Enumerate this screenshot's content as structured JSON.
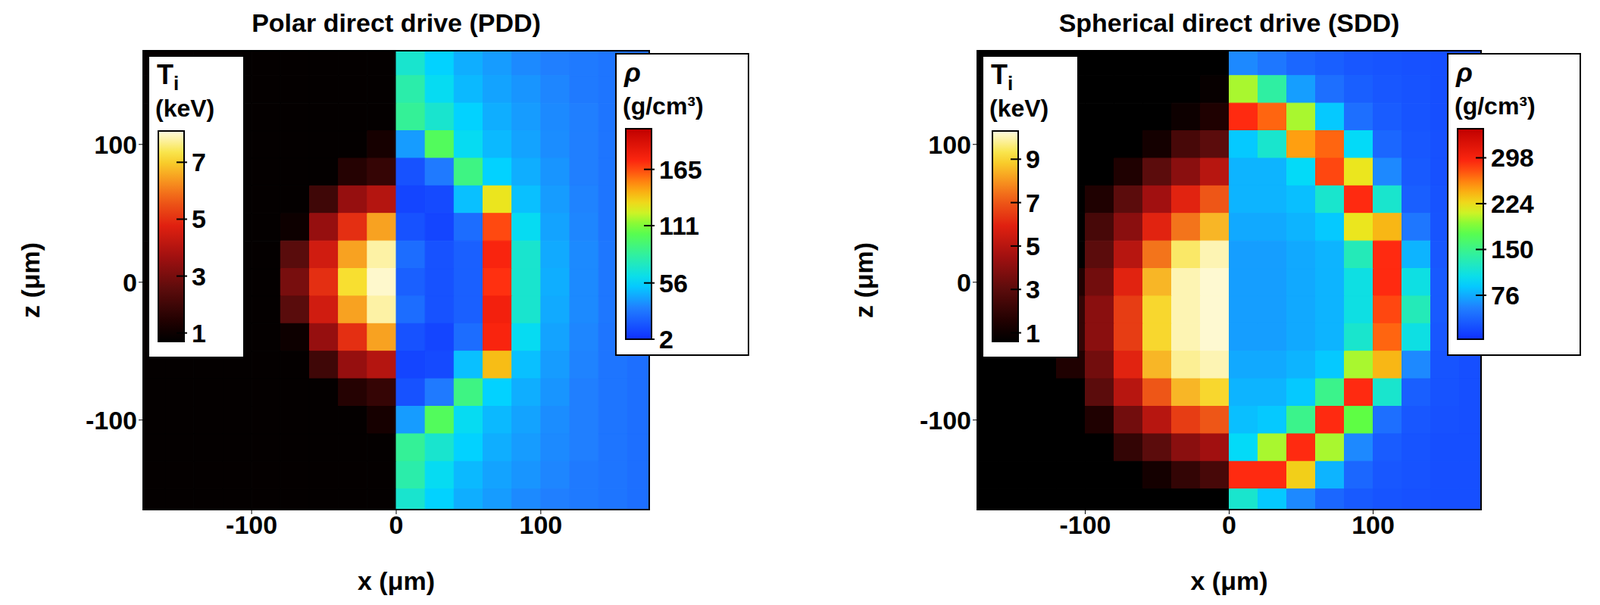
{
  "chart_data": [
    {
      "type": "heatmap",
      "title": "Polar direct drive (PDD)",
      "x_label": "x (μm)",
      "y_label": "z (μm)",
      "xlim": [
        -175,
        175
      ],
      "ylim": [
        -165,
        168
      ],
      "xticks": [
        -100,
        0,
        100
      ],
      "yticks": [
        -100,
        0,
        100
      ],
      "fields": [
        {
          "colorbar_title": "Ti",
          "colorbar_unit": "(keV)",
          "colorbar_range": [
            0.7,
            8.1
          ],
          "colorbar_ticks": [
            1,
            3,
            5,
            7
          ],
          "x": [
            -170,
            -150,
            -130,
            -110,
            -90,
            -70,
            -50,
            -30,
            -10
          ],
          "y": [
            160,
            140,
            120,
            100,
            80,
            60,
            40,
            20,
            0,
            -20,
            -40,
            -60,
            -80,
            -100,
            -120,
            -140,
            -160
          ],
          "cells": [
            [
              0.8,
              0.8,
              0.8,
              0.8,
              0.8,
              0.8,
              0.8,
              0.8,
              0.8
            ],
            [
              0.8,
              0.8,
              0.8,
              0.8,
              0.8,
              0.8,
              0.8,
              0.8,
              0.8
            ],
            [
              0.8,
              0.8,
              0.8,
              0.8,
              0.8,
              0.8,
              0.8,
              0.8,
              0.8
            ],
            [
              0.8,
              0.8,
              0.8,
              0.8,
              0.8,
              0.8,
              0.8,
              0.8,
              1.2
            ],
            [
              0.8,
              0.8,
              0.8,
              0.8,
              0.8,
              0.8,
              0.8,
              1.5,
              1.8
            ],
            [
              0.8,
              0.8,
              0.8,
              0.8,
              0.8,
              0.8,
              2,
              3.5,
              4
            ],
            [
              0.8,
              0.8,
              0.8,
              0.8,
              0.8,
              1,
              3.5,
              5,
              6.5
            ],
            [
              0.8,
              0.8,
              0.8,
              0.8,
              0.8,
              2.5,
              4.5,
              6.5,
              7.8
            ],
            [
              0.8,
              0.8,
              0.8,
              0.8,
              0.8,
              3,
              5,
              7.2,
              8
            ],
            [
              0.8,
              0.8,
              0.8,
              0.8,
              0.8,
              2.5,
              4.5,
              6.5,
              7.8
            ],
            [
              0.8,
              0.8,
              0.8,
              0.8,
              0.8,
              1,
              3.5,
              5,
              6.5
            ],
            [
              0.8,
              0.8,
              0.8,
              0.8,
              0.8,
              0.8,
              2,
              3.5,
              4
            ],
            [
              0.8,
              0.8,
              0.8,
              0.8,
              0.8,
              0.8,
              0.8,
              1.5,
              1.8
            ],
            [
              0.8,
              0.8,
              0.8,
              0.8,
              0.8,
              0.8,
              0.8,
              0.8,
              1.2
            ],
            [
              0.8,
              0.8,
              0.8,
              0.8,
              0.8,
              0.8,
              0.8,
              0.8,
              0.8
            ],
            [
              0.8,
              0.8,
              0.8,
              0.8,
              0.8,
              0.8,
              0.8,
              0.8,
              0.8
            ],
            [
              0.8,
              0.8,
              0.8,
              0.8,
              0.8,
              0.8,
              0.8,
              0.8,
              0.8
            ]
          ]
        },
        {
          "colorbar_title": "ρ",
          "colorbar_unit": "(g/cm³)",
          "colorbar_range": [
            2,
            204
          ],
          "colorbar_ticks": [
            2,
            56,
            111,
            165
          ],
          "x": [
            10,
            30,
            50,
            70,
            90,
            110,
            130,
            150,
            170
          ],
          "y": [
            160,
            140,
            120,
            100,
            80,
            60,
            40,
            20,
            0,
            -20,
            -40,
            -60,
            -80,
            -100,
            -120,
            -140,
            -160
          ],
          "cells": [
            [
              70,
              55,
              45,
              40,
              35,
              32,
              30,
              28,
              26
            ],
            [
              80,
              60,
              48,
              42,
              38,
              34,
              30,
              28,
              26
            ],
            [
              85,
              70,
              55,
              45,
              40,
              35,
              32,
              28,
              26
            ],
            [
              40,
              100,
              60,
              48,
              42,
              36,
              32,
              28,
              26
            ],
            [
              15,
              30,
              90,
              55,
              45,
              38,
              32,
              28,
              26
            ],
            [
              10,
              12,
              50,
              130,
              50,
              40,
              33,
              28,
              26
            ],
            [
              15,
              10,
              25,
              165,
              60,
              42,
              34,
              28,
              26
            ],
            [
              25,
              15,
              20,
              175,
              70,
              44,
              35,
              29,
              26
            ],
            [
              20,
              15,
              20,
              170,
              70,
              45,
              35,
              29,
              26
            ],
            [
              25,
              15,
              20,
              178,
              70,
              44,
              35,
              29,
              26
            ],
            [
              15,
              10,
              25,
              175,
              60,
              42,
              34,
              28,
              26
            ],
            [
              10,
              12,
              50,
              140,
              50,
              40,
              33,
              28,
              26
            ],
            [
              15,
              30,
              90,
              55,
              45,
              38,
              32,
              28,
              26
            ],
            [
              40,
              100,
              60,
              48,
              42,
              36,
              32,
              28,
              26
            ],
            [
              85,
              70,
              55,
              45,
              40,
              35,
              32,
              28,
              26
            ],
            [
              80,
              60,
              48,
              42,
              38,
              34,
              30,
              28,
              26
            ],
            [
              70,
              55,
              45,
              40,
              35,
              32,
              30,
              28,
              26
            ]
          ]
        }
      ]
    },
    {
      "type": "heatmap",
      "title": "Spherical direct drive (SDD)",
      "x_label": "x (μm)",
      "y_label": "z (μm)",
      "xlim": [
        -175,
        175
      ],
      "ylim": [
        -165,
        168
      ],
      "xticks": [
        -100,
        0,
        100
      ],
      "yticks": [
        -100,
        0,
        100
      ],
      "fields": [
        {
          "colorbar_title": "Ti",
          "colorbar_unit": "(keV)",
          "colorbar_range": [
            0.6,
            10.3
          ],
          "colorbar_ticks": [
            1,
            3,
            5,
            7,
            9
          ],
          "x": [
            -170,
            -150,
            -130,
            -110,
            -90,
            -70,
            -50,
            -30,
            -10
          ],
          "y": [
            160,
            140,
            120,
            100,
            80,
            60,
            40,
            20,
            0,
            -20,
            -40,
            -60,
            -80,
            -100,
            -120,
            -140,
            -160
          ],
          "cells": [
            [
              0.6,
              0.6,
              0.6,
              0.6,
              0.6,
              0.6,
              0.6,
              0.6,
              0.6
            ],
            [
              0.6,
              0.6,
              0.6,
              0.6,
              0.6,
              0.6,
              0.6,
              0.6,
              0.8
            ],
            [
              0.6,
              0.6,
              0.6,
              0.6,
              0.6,
              0.6,
              0.6,
              1,
              1.5
            ],
            [
              0.6,
              0.6,
              0.6,
              0.6,
              0.6,
              0.6,
              1.2,
              2.5,
              3
            ],
            [
              0.6,
              0.6,
              0.6,
              0.6,
              0.6,
              1.5,
              3,
              4,
              5
            ],
            [
              0.6,
              0.6,
              0.6,
              0.6,
              1.5,
              3,
              4.5,
              6,
              7
            ],
            [
              0.6,
              0.6,
              0.6,
              0.6,
              2.5,
              4,
              6,
              7.5,
              8.5
            ],
            [
              0.6,
              0.6,
              0.6,
              0.6,
              3,
              5,
              7.5,
              9.5,
              10
            ],
            [
              0.6,
              0.6,
              0.6,
              1.5,
              3.5,
              6,
              8.5,
              10,
              10.2
            ],
            [
              0.6,
              0.6,
              0.6,
              2,
              4,
              6.5,
              9,
              10,
              10.2
            ],
            [
              0.6,
              0.6,
              0.6,
              2,
              4,
              6.5,
              9,
              10,
              10.2
            ],
            [
              0.6,
              0.6,
              0.6,
              1.5,
              3.5,
              6,
              8.5,
              9.8,
              10
            ],
            [
              0.6,
              0.6,
              0.6,
              0.6,
              3,
              5,
              7,
              8.5,
              9
            ],
            [
              0.6,
              0.6,
              0.6,
              0.6,
              1.5,
              3.5,
              5,
              6.5,
              7
            ],
            [
              0.6,
              0.6,
              0.6,
              0.6,
              0.6,
              2,
              3,
              4,
              4.5
            ],
            [
              0.6,
              0.6,
              0.6,
              0.6,
              0.6,
              0.6,
              1.2,
              2,
              2.5
            ],
            [
              0.6,
              0.6,
              0.6,
              0.6,
              0.6,
              0.6,
              0.6,
              0.6,
              0.6
            ]
          ]
        },
        {
          "colorbar_title": "ρ",
          "colorbar_unit": "(g/cm³)",
          "colorbar_range": [
            5,
            345
          ],
          "colorbar_ticks": [
            76,
            150,
            224,
            298
          ],
          "x": [
            10,
            30,
            50,
            70,
            90,
            110,
            130,
            150,
            170
          ],
          "y": [
            160,
            140,
            120,
            100,
            80,
            60,
            40,
            20,
            0,
            -20,
            -40,
            -60,
            -80,
            -100,
            -120,
            -140,
            -160
          ],
          "cells": [
            [
              60,
              50,
              40,
              35,
              30,
              28,
              26,
              25,
              25
            ],
            [
              200,
              140,
              70,
              45,
              35,
              30,
              27,
              25,
              25
            ],
            [
              290,
              270,
              200,
              90,
              45,
              33,
              28,
              25,
              25
            ],
            [
              90,
              120,
              250,
              270,
              100,
              40,
              30,
              26,
              25
            ],
            [
              80,
              80,
              100,
              280,
              220,
              60,
              32,
              26,
              25
            ],
            [
              80,
              80,
              85,
              120,
              290,
              120,
              35,
              27,
              25
            ],
            [
              75,
              75,
              80,
              90,
              220,
              240,
              50,
              28,
              25
            ],
            [
              70,
              70,
              75,
              80,
              130,
              290,
              80,
              30,
              25
            ],
            [
              70,
              70,
              75,
              80,
              110,
              290,
              110,
              32,
              25
            ],
            [
              70,
              70,
              75,
              80,
              110,
              280,
              130,
              32,
              25
            ],
            [
              70,
              70,
              75,
              80,
              120,
              270,
              110,
              30,
              25
            ],
            [
              75,
              75,
              80,
              90,
              200,
              240,
              60,
              28,
              25
            ],
            [
              80,
              80,
              90,
              150,
              290,
              120,
              35,
              27,
              25
            ],
            [
              85,
              90,
              150,
              290,
              180,
              45,
              30,
              26,
              25
            ],
            [
              100,
              200,
              290,
              200,
              60,
              33,
              28,
              25,
              25
            ],
            [
              290,
              290,
              230,
              80,
              40,
              30,
              27,
              25,
              25
            ],
            [
              120,
              90,
              60,
              40,
              32,
              28,
              26,
              25,
              25
            ]
          ]
        }
      ]
    }
  ]
}
